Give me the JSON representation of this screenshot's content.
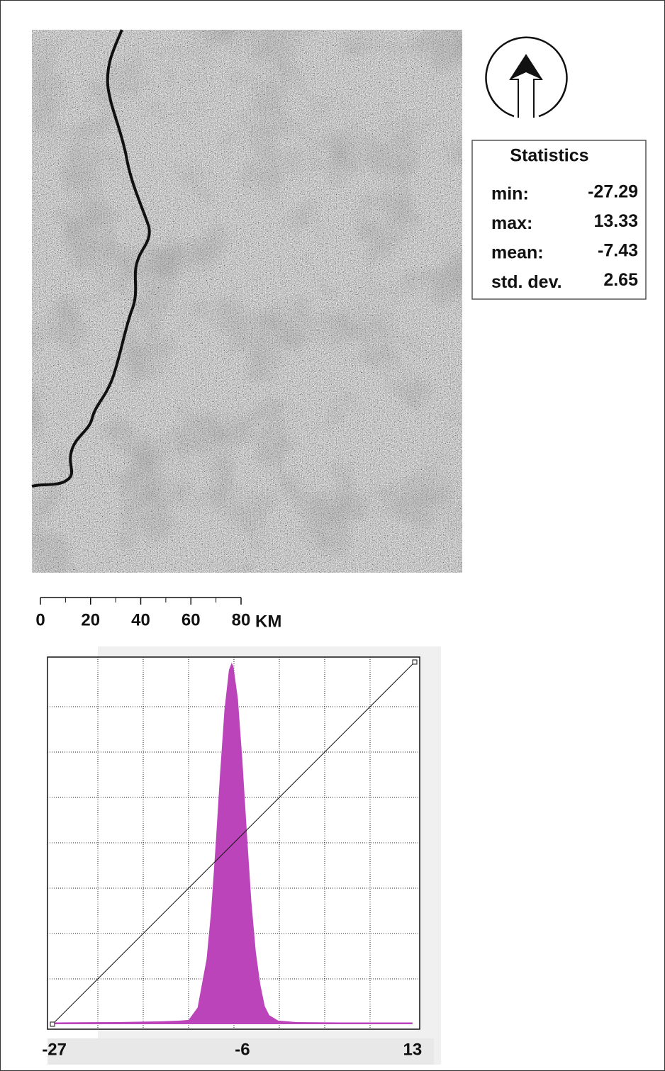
{
  "statistics": {
    "title": "Statistics",
    "rows": [
      {
        "label": "min:",
        "value": -27.29
      },
      {
        "label": "max:",
        "value": 13.33
      },
      {
        "label": "mean:",
        "value": -7.43
      },
      {
        "label": "std. dev.",
        "value": 2.65
      }
    ]
  },
  "scale_bar": {
    "ticks": [
      0,
      20,
      40,
      60,
      80
    ],
    "unit": "KM"
  },
  "chart_data": {
    "type": "area",
    "color": "#bb44bb",
    "x": [
      -27,
      -20,
      -15,
      -13,
      -12,
      -11,
      -10,
      -9.5,
      -9,
      -8.5,
      -8,
      -7.5,
      -7.2,
      -7,
      -6.5,
      -6,
      -5.5,
      -5,
      -4.5,
      -4,
      -3.5,
      -3,
      -2,
      -1,
      0,
      5,
      13
    ],
    "values": [
      0.5,
      0.6,
      0.8,
      1,
      1.2,
      4.6,
      18,
      31,
      49,
      69,
      87,
      98,
      100,
      99,
      90,
      73,
      53,
      34,
      20,
      11,
      5,
      2.5,
      1,
      0.8,
      0.6,
      0.5,
      0.5
    ],
    "xlim": [
      -27.29,
      13.33
    ],
    "ylim": [
      0,
      100
    ],
    "xticks": [
      -27,
      -6,
      13
    ]
  }
}
